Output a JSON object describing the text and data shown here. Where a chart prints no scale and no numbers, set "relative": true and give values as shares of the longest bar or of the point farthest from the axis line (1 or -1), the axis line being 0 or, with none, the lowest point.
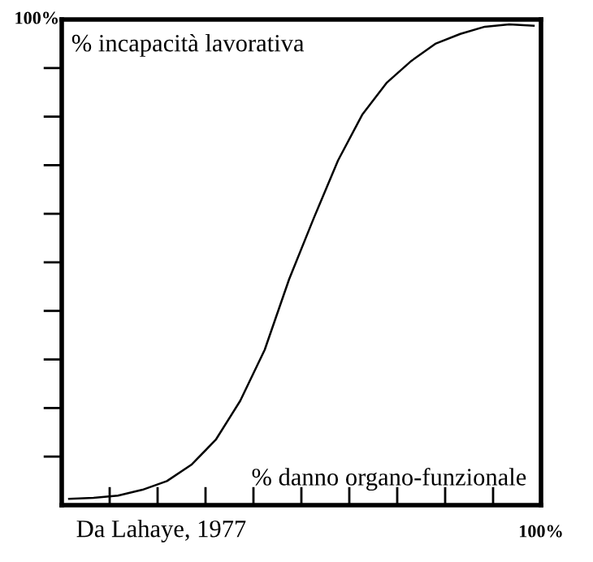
{
  "chart_data": {
    "type": "line",
    "relative": true,
    "xlabel": "% danno organo-funzionale",
    "ylabel": "% incapacità lavorativa",
    "annotations": [
      "Da Lahaye, 1977",
      "100%",
      "100%"
    ],
    "categories": [
      null,
      null,
      null,
      null,
      null,
      null,
      null,
      null,
      null,
      null,
      null,
      null,
      null,
      null,
      null,
      null,
      null,
      null,
      null,
      null
    ],
    "series": [
      {
        "color": "#000000",
        "values": [
          0.013,
          0.015,
          0.02,
          0.032,
          0.05,
          0.084,
          0.136,
          0.217,
          0.323,
          0.47,
          0.596,
          0.717,
          0.813,
          0.879,
          0.924,
          0.96,
          0.98,
          0.995,
          1,
          0.997
        ]
      }
    ],
    "grid": false,
    "legend": false,
    "marker": "none",
    "line_style": "solid"
  }
}
